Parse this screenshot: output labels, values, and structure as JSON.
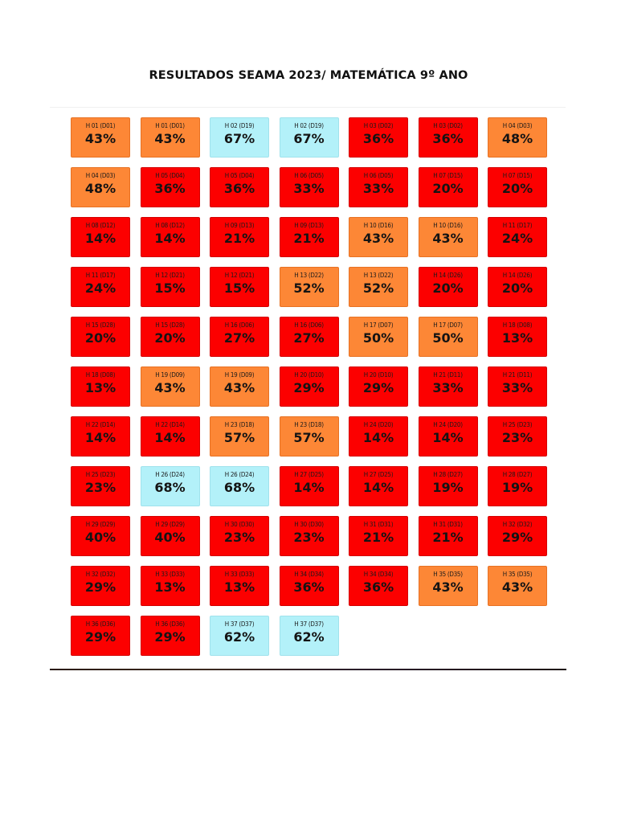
{
  "title": "RESULTADOS SEAMA 2023/ MATEMÁTICA 9º ANO",
  "colors": {
    "red": "#fc0000",
    "orange": "#fd8736",
    "cyan": "#b3f1f9"
  },
  "cells": [
    {
      "code": "H 01 (D01)",
      "pct": "43%",
      "color": "orange"
    },
    {
      "code": "H 01 (D01)",
      "pct": "43%",
      "color": "orange"
    },
    {
      "code": "H 02 (D19)",
      "pct": "67%",
      "color": "cyan"
    },
    {
      "code": "H 02 (D19)",
      "pct": "67%",
      "color": "cyan"
    },
    {
      "code": "H 03 (D02)",
      "pct": "36%",
      "color": "red"
    },
    {
      "code": "H 03 (D02)",
      "pct": "36%",
      "color": "red"
    },
    {
      "code": "H 04 (D03)",
      "pct": "48%",
      "color": "orange"
    },
    {
      "code": "H 04 (D03)",
      "pct": "48%",
      "color": "orange"
    },
    {
      "code": "H 05 (D04)",
      "pct": "36%",
      "color": "red"
    },
    {
      "code": "H 05 (D04)",
      "pct": "36%",
      "color": "red"
    },
    {
      "code": "H 06 (D05)",
      "pct": "33%",
      "color": "red"
    },
    {
      "code": "H 06 (D05)",
      "pct": "33%",
      "color": "red"
    },
    {
      "code": "H 07 (D15)",
      "pct": "20%",
      "color": "red"
    },
    {
      "code": "H 07 (D15)",
      "pct": "20%",
      "color": "red"
    },
    {
      "code": "H 08 (D12)",
      "pct": "14%",
      "color": "red"
    },
    {
      "code": "H 08 (D12)",
      "pct": "14%",
      "color": "red"
    },
    {
      "code": "H 09 (D13)",
      "pct": "21%",
      "color": "red"
    },
    {
      "code": "H 09 (D13)",
      "pct": "21%",
      "color": "red"
    },
    {
      "code": "H 10 (D16)",
      "pct": "43%",
      "color": "orange"
    },
    {
      "code": "H 10 (D16)",
      "pct": "43%",
      "color": "orange"
    },
    {
      "code": "H 11 (D17)",
      "pct": "24%",
      "color": "red"
    },
    {
      "code": "H 11 (D17)",
      "pct": "24%",
      "color": "red"
    },
    {
      "code": "H 12 (D21)",
      "pct": "15%",
      "color": "red"
    },
    {
      "code": "H 12 (D21)",
      "pct": "15%",
      "color": "red"
    },
    {
      "code": "H 13 (D22)",
      "pct": "52%",
      "color": "orange"
    },
    {
      "code": "H 13 (D22)",
      "pct": "52%",
      "color": "orange"
    },
    {
      "code": "H 14 (D26)",
      "pct": "20%",
      "color": "red"
    },
    {
      "code": "H 14 (D26)",
      "pct": "20%",
      "color": "red"
    },
    {
      "code": "H 15 (D28)",
      "pct": "20%",
      "color": "red"
    },
    {
      "code": "H 15 (D28)",
      "pct": "20%",
      "color": "red"
    },
    {
      "code": "H 16 (D06)",
      "pct": "27%",
      "color": "red"
    },
    {
      "code": "H 16 (D06)",
      "pct": "27%",
      "color": "red"
    },
    {
      "code": "H 17 (D07)",
      "pct": "50%",
      "color": "orange"
    },
    {
      "code": "H 17 (D07)",
      "pct": "50%",
      "color": "orange"
    },
    {
      "code": "H 18 (D08)",
      "pct": "13%",
      "color": "red"
    },
    {
      "code": "H 18 (D08)",
      "pct": "13%",
      "color": "red"
    },
    {
      "code": "H 19 (D09)",
      "pct": "43%",
      "color": "orange"
    },
    {
      "code": "H 19 (D09)",
      "pct": "43%",
      "color": "orange"
    },
    {
      "code": "H 20 (D10)",
      "pct": "29%",
      "color": "red"
    },
    {
      "code": "H 20 (D10)",
      "pct": "29%",
      "color": "red"
    },
    {
      "code": "H 21 (D11)",
      "pct": "33%",
      "color": "red"
    },
    {
      "code": "H 21 (D11)",
      "pct": "33%",
      "color": "red"
    },
    {
      "code": "H 22 (D14)",
      "pct": "14%",
      "color": "red"
    },
    {
      "code": "H 22 (D14)",
      "pct": "14%",
      "color": "red"
    },
    {
      "code": "H 23 (D18)",
      "pct": "57%",
      "color": "orange"
    },
    {
      "code": "H 23 (D18)",
      "pct": "57%",
      "color": "orange"
    },
    {
      "code": "H 24 (D20)",
      "pct": "14%",
      "color": "red"
    },
    {
      "code": "H 24 (D20)",
      "pct": "14%",
      "color": "red"
    },
    {
      "code": "H 25 (D23)",
      "pct": "23%",
      "color": "red"
    },
    {
      "code": "H 25 (D23)",
      "pct": "23%",
      "color": "red"
    },
    {
      "code": "H 26 (D24)",
      "pct": "68%",
      "color": "cyan"
    },
    {
      "code": "H 26 (D24)",
      "pct": "68%",
      "color": "cyan"
    },
    {
      "code": "H 27 (D25)",
      "pct": "14%",
      "color": "red"
    },
    {
      "code": "H 27 (D25)",
      "pct": "14%",
      "color": "red"
    },
    {
      "code": "H 28 (D27)",
      "pct": "19%",
      "color": "red"
    },
    {
      "code": "H 28 (D27)",
      "pct": "19%",
      "color": "red"
    },
    {
      "code": "H 29 (D29)",
      "pct": "40%",
      "color": "red"
    },
    {
      "code": "H 29 (D29)",
      "pct": "40%",
      "color": "red"
    },
    {
      "code": "H 30 (D30)",
      "pct": "23%",
      "color": "red"
    },
    {
      "code": "H 30 (D30)",
      "pct": "23%",
      "color": "red"
    },
    {
      "code": "H 31 (D31)",
      "pct": "21%",
      "color": "red"
    },
    {
      "code": "H 31 (D31)",
      "pct": "21%",
      "color": "red"
    },
    {
      "code": "H 32 (D32)",
      "pct": "29%",
      "color": "red"
    },
    {
      "code": "H 32 (D32)",
      "pct": "29%",
      "color": "red"
    },
    {
      "code": "H 33 (D33)",
      "pct": "13%",
      "color": "red"
    },
    {
      "code": "H 33 (D33)",
      "pct": "13%",
      "color": "red"
    },
    {
      "code": "H 34 (D34)",
      "pct": "36%",
      "color": "red"
    },
    {
      "code": "H 34 (D34)",
      "pct": "36%",
      "color": "red"
    },
    {
      "code": "H 35 (D35)",
      "pct": "43%",
      "color": "orange"
    },
    {
      "code": "H 35 (D35)",
      "pct": "43%",
      "color": "orange"
    },
    {
      "code": "H 36 (D36)",
      "pct": "29%",
      "color": "red"
    },
    {
      "code": "H 36 (D36)",
      "pct": "29%",
      "color": "red"
    },
    {
      "code": "H 37 (D37)",
      "pct": "62%",
      "color": "cyan"
    },
    {
      "code": "H 37 (D37)",
      "pct": "62%",
      "color": "cyan"
    }
  ]
}
